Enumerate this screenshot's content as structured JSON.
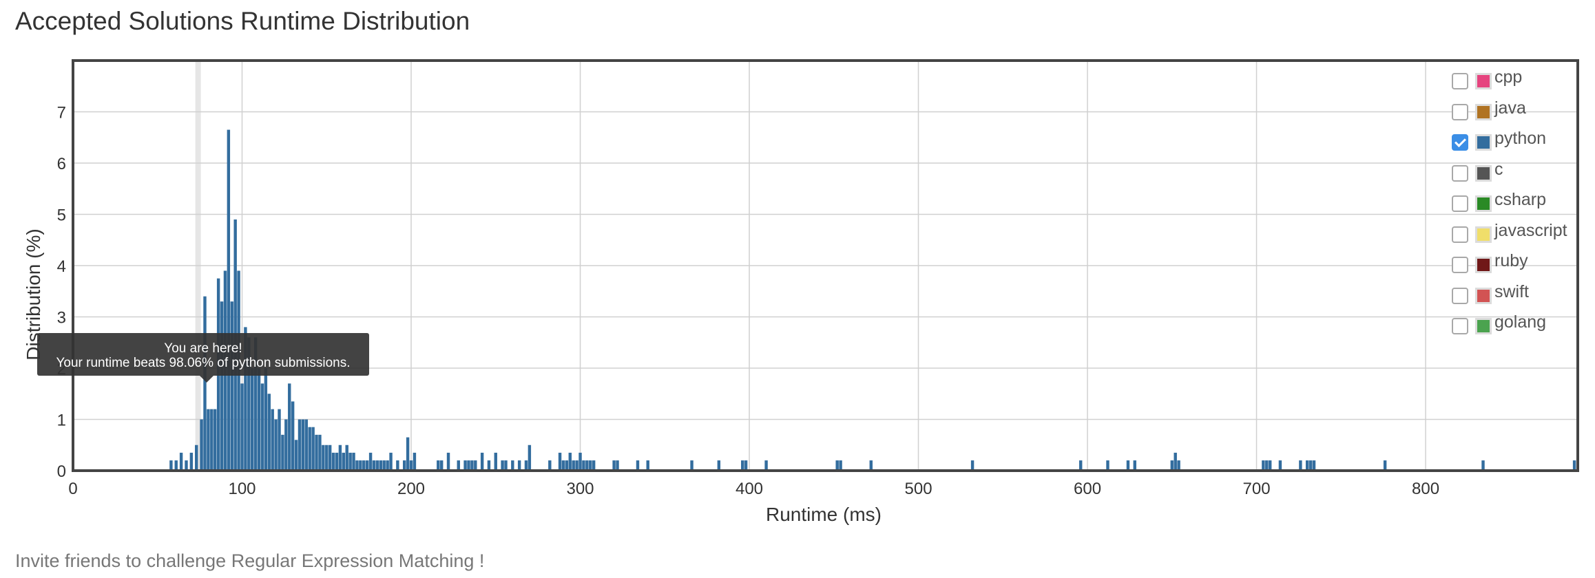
{
  "title": "Accepted Solutions Runtime Distribution",
  "footer": "Invite friends to challenge Regular Expression Matching !",
  "tooltip": {
    "line1": "You are here!",
    "line2": "Your runtime beats 98.06% of python submissions."
  },
  "legend": [
    {
      "name": "cpp",
      "color": "#e6447f",
      "checked": false
    },
    {
      "name": "java",
      "color": "#b07323",
      "checked": false
    },
    {
      "name": "python",
      "color": "#336d9e",
      "checked": true
    },
    {
      "name": "c",
      "color": "#555555",
      "checked": false
    },
    {
      "name": "csharp",
      "color": "#2a8a25",
      "checked": false
    },
    {
      "name": "javascript",
      "color": "#f0de6a",
      "checked": false
    },
    {
      "name": "ruby",
      "color": "#701818",
      "checked": false
    },
    {
      "name": "swift",
      "color": "#d25353",
      "checked": false
    },
    {
      "name": "golang",
      "color": "#4ba34f",
      "checked": false
    }
  ],
  "chart_data": {
    "type": "bar",
    "title": "Accepted Solutions Runtime Distribution",
    "xlabel": "Runtime (ms)",
    "ylabel": "Distribution (%)",
    "xlim": [
      0,
      890
    ],
    "ylim": [
      0,
      8
    ],
    "xticks": [
      0,
      100,
      200,
      300,
      400,
      500,
      600,
      700,
      800
    ],
    "yticks": [
      0,
      1,
      2,
      3,
      4,
      5,
      6,
      7
    ],
    "grid": true,
    "legend_position": "top-right",
    "bar_width_ms": 2,
    "highlight_runtime_ms": 74,
    "series": [
      {
        "name": "python",
        "color": "#336d9e",
        "x": [
          58,
          61,
          64,
          67,
          70,
          73,
          76,
          78,
          80,
          82,
          84,
          86,
          88,
          90,
          92,
          94,
          96,
          98,
          100,
          102,
          104,
          106,
          108,
          110,
          112,
          114,
          116,
          118,
          120,
          122,
          124,
          126,
          128,
          130,
          132,
          134,
          136,
          138,
          140,
          142,
          144,
          146,
          148,
          150,
          152,
          154,
          156,
          158,
          160,
          162,
          164,
          166,
          168,
          170,
          172,
          174,
          176,
          178,
          180,
          182,
          184,
          186,
          188,
          192,
          196,
          198,
          200,
          202,
          216,
          218,
          222,
          228,
          232,
          234,
          236,
          238,
          242,
          246,
          250,
          254,
          256,
          260,
          264,
          268,
          270,
          282,
          288,
          290,
          292,
          294,
          296,
          298,
          300,
          302,
          304,
          306,
          308,
          320,
          322,
          334,
          340,
          366,
          382,
          396,
          398,
          410,
          452,
          454,
          472,
          532,
          596,
          612,
          624,
          628,
          650,
          652,
          654,
          704,
          706,
          708,
          714,
          726,
          730,
          732,
          734,
          776,
          834,
          888
        ],
        "values": [
          0.2,
          0.2,
          0.35,
          0.2,
          0.35,
          0.5,
          1.0,
          3.4,
          1.2,
          1.2,
          1.2,
          3.75,
          3.3,
          3.9,
          6.65,
          3.3,
          4.9,
          3.9,
          1.7,
          2.8,
          2.6,
          2.0,
          2.6,
          2.0,
          1.7,
          2.0,
          1.5,
          1.2,
          1.0,
          1.2,
          0.7,
          1.0,
          1.7,
          1.35,
          0.6,
          1.0,
          1.0,
          1.0,
          0.85,
          0.85,
          0.7,
          0.7,
          0.5,
          0.5,
          0.5,
          0.35,
          0.35,
          0.5,
          0.35,
          0.5,
          0.35,
          0.35,
          0.2,
          0.2,
          0.2,
          0.2,
          0.35,
          0.2,
          0.2,
          0.2,
          0.2,
          0.2,
          0.35,
          0.2,
          0.2,
          0.65,
          0.2,
          0.35,
          0.2,
          0.2,
          0.35,
          0.2,
          0.2,
          0.2,
          0.2,
          0.2,
          0.35,
          0.2,
          0.35,
          0.2,
          0.2,
          0.2,
          0.2,
          0.2,
          0.5,
          0.2,
          0.35,
          0.2,
          0.2,
          0.35,
          0.2,
          0.2,
          0.35,
          0.2,
          0.2,
          0.2,
          0.2,
          0.2,
          0.2,
          0.2,
          0.2,
          0.2,
          0.2,
          0.2,
          0.2,
          0.2,
          0.2,
          0.2,
          0.2,
          0.2,
          0.2,
          0.2,
          0.2,
          0.2,
          0.2,
          0.35,
          0.2,
          0.2,
          0.2,
          0.2,
          0.2,
          0.2,
          0.2,
          0.2,
          0.2,
          0.2,
          0.2,
          0.2
        ]
      }
    ]
  }
}
